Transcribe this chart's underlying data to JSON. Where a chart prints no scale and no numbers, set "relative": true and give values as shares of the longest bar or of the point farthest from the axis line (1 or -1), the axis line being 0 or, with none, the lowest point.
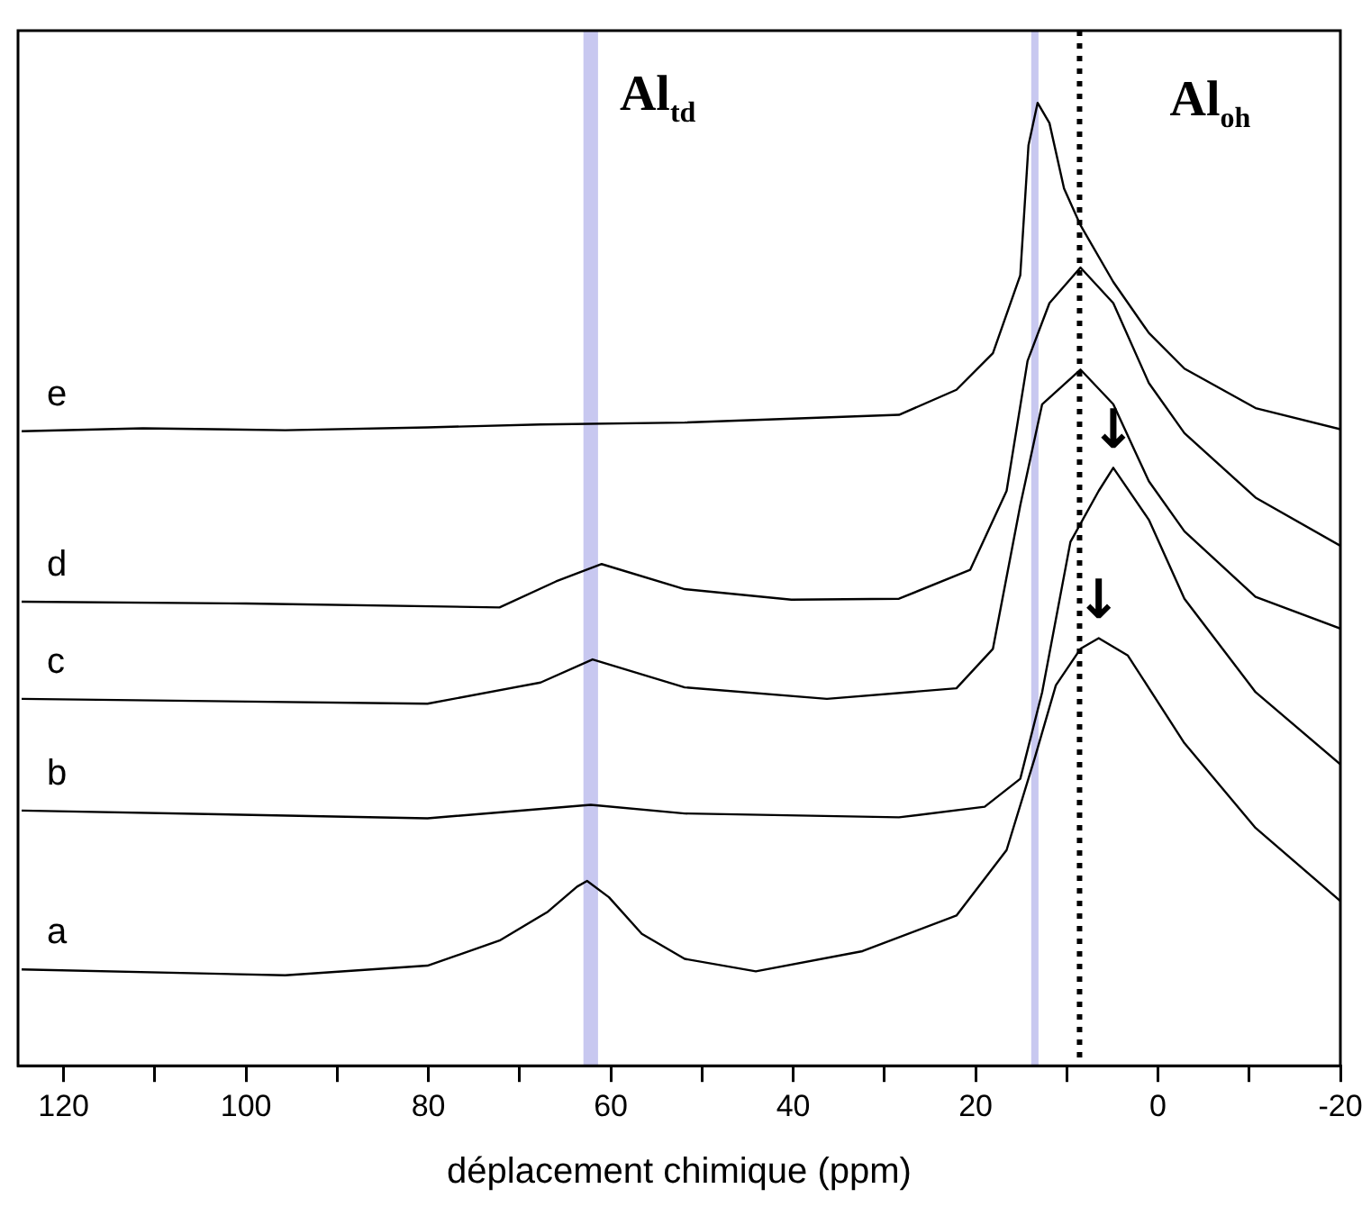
{
  "chart_data": {
    "type": "line",
    "relative": true,
    "xlabel": "déplacement chimique (ppm)",
    "xlim": [
      125,
      -20
    ],
    "xticks": [
      120,
      {
        "value": 110,
        "label": null
      },
      100,
      {
        "value": 90,
        "label": null
      },
      80,
      {
        "value": 70,
        "label": null
      },
      60,
      {
        "value": 50,
        "label": null
      },
      40,
      {
        "value": 30,
        "label": null
      },
      20,
      {
        "value": 10,
        "label": null
      },
      0,
      {
        "value": -10,
        "label": null
      },
      -20
    ],
    "grid": false,
    "legend": false,
    "marker": "none",
    "line_style": "solid",
    "series": [
      {
        "name": "e",
        "color": "#000000",
        "x": [
          124.6,
          111.3,
          95.7,
          80.1,
          67.7,
          51.9,
          28.4,
          22.1,
          18.1,
          15.1,
          14.2,
          13.2,
          11.9,
          10.3,
          8.5,
          4.9,
          1.0,
          -2.9,
          -10.7,
          -20
        ],
        "values": [
          0.659,
          0.662,
          0.66,
          0.663,
          0.666,
          0.668,
          0.676,
          0.702,
          0.74,
          0.821,
          0.956,
          1.0,
          0.979,
          0.911,
          0.873,
          0.814,
          0.761,
          0.724,
          0.683,
          0.661
        ]
      },
      {
        "name": "d",
        "color": "#000000",
        "x": [
          124.6,
          100,
          72.2,
          66.0,
          61.0,
          51.9,
          40.2,
          28.4,
          20.6,
          16.6,
          14.3,
          11.9,
          8.5,
          4.9,
          1.0,
          -2.9,
          -10.7,
          -20
        ],
        "values": [
          0.482,
          0.48,
          0.476,
          0.503,
          0.521,
          0.495,
          0.484,
          0.485,
          0.515,
          0.597,
          0.732,
          0.792,
          0.829,
          0.792,
          0.709,
          0.657,
          0.59,
          0.54
        ]
      },
      {
        "name": "c",
        "color": "#000000",
        "x": [
          124.6,
          80.1,
          67.7,
          62.0,
          51.9,
          36.3,
          22.1,
          18.1,
          15.1,
          12.7,
          8.5,
          4.9,
          1.0,
          -2.9,
          -10.7,
          -20
        ],
        "values": [
          0.381,
          0.376,
          0.398,
          0.422,
          0.393,
          0.381,
          0.392,
          0.433,
          0.582,
          0.687,
          0.723,
          0.687,
          0.607,
          0.555,
          0.487,
          0.454
        ]
      },
      {
        "name": "b",
        "color": "#000000",
        "x": [
          124.6,
          80.1,
          62.2,
          51.9,
          28.4,
          19.0,
          15.1,
          12.7,
          9.6,
          6.5,
          4.9,
          1.0,
          -2.9,
          -10.7,
          -20
        ],
        "values": [
          0.265,
          0.257,
          0.271,
          0.262,
          0.258,
          0.269,
          0.298,
          0.388,
          0.544,
          0.597,
          0.621,
          0.567,
          0.485,
          0.388,
          0.313
        ]
      },
      {
        "name": "a",
        "color": "#000000",
        "x": [
          124.6,
          95.7,
          80.1,
          72.2,
          66.9,
          63.7,
          62.6,
          60.2,
          56.6,
          51.9,
          44.1,
          32.4,
          22.1,
          16.6,
          13.5,
          11.2,
          8.5,
          6.5,
          3.3,
          -2.9,
          -10.7,
          -20
        ],
        "values": [
          0.1,
          0.094,
          0.104,
          0.13,
          0.16,
          0.186,
          0.192,
          0.175,
          0.137,
          0.111,
          0.098,
          0.119,
          0.156,
          0.224,
          0.32,
          0.395,
          0.433,
          0.444,
          0.426,
          0.335,
          0.247,
          0.171
        ]
      }
    ],
    "bands": [
      {
        "axis": "x",
        "from": 63.0,
        "to": 61.4,
        "color": "#c8c8f0",
        "label": "Al$_{td}$"
      },
      {
        "axis": "x",
        "from": 13.9,
        "to": 13.1,
        "color": "#c8c8f0"
      }
    ],
    "ref_lines": [
      {
        "axis": "x",
        "value": 8.6,
        "color": "#000000",
        "line_style": "dotted",
        "label": "Al$_{oh}$"
      }
    ],
    "annotations": [
      {
        "text": "↓",
        "x": 4.9,
        "y": 0.621
      },
      {
        "text": "↓",
        "x": 6.5,
        "y": 0.444
      }
    ]
  }
}
